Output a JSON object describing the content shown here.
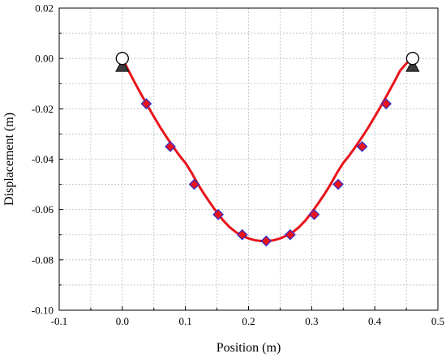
{
  "chart_data": {
    "type": "line",
    "xlabel": "Position (m)",
    "ylabel": "Displacement (m)",
    "xlim": [
      -0.1,
      0.5
    ],
    "ylim": [
      -0.1,
      0.02
    ],
    "x_ticks": [
      -0.1,
      0.0,
      0.1,
      0.2,
      0.3,
      0.4,
      0.5
    ],
    "y_ticks": [
      0.02,
      0.0,
      -0.02,
      -0.04,
      -0.06,
      -0.08,
      -0.1
    ],
    "x_tick_labels": [
      "-0.1",
      "0.0",
      "0.1",
      "0.2",
      "0.3",
      "0.4",
      "0.5"
    ],
    "y_tick_labels": [
      "0.02",
      "0.00",
      "-0.02",
      "-0.04",
      "-0.06",
      "-0.08",
      "-0.10"
    ],
    "grid": true,
    "series": [
      {
        "role": "curve",
        "color": "#e8141b",
        "x": [
          0.0,
          0.01,
          0.02,
          0.03,
          0.04,
          0.05,
          0.06,
          0.07,
          0.08,
          0.09,
          0.1,
          0.11,
          0.12,
          0.13,
          0.14,
          0.15,
          0.16,
          0.17,
          0.18,
          0.19,
          0.2,
          0.21,
          0.22,
          0.23,
          0.24,
          0.25,
          0.26,
          0.27,
          0.28,
          0.29,
          0.3,
          0.31,
          0.32,
          0.33,
          0.34,
          0.35,
          0.36,
          0.37,
          0.38,
          0.39,
          0.4,
          0.41,
          0.42,
          0.43,
          0.44,
          0.45,
          0.46
        ],
        "y": [
          0.0,
          -0.0049,
          -0.0097,
          -0.0143,
          -0.0188,
          -0.0231,
          -0.0273,
          -0.0312,
          -0.0349,
          -0.0384,
          -0.0415,
          -0.0455,
          -0.05,
          -0.054,
          -0.0577,
          -0.0612,
          -0.0644,
          -0.067,
          -0.069,
          -0.0704,
          -0.0715,
          -0.0722,
          -0.0725,
          -0.0725,
          -0.0722,
          -0.0715,
          -0.0704,
          -0.069,
          -0.067,
          -0.0644,
          -0.0612,
          -0.0577,
          -0.054,
          -0.05,
          -0.0455,
          -0.0415,
          -0.0384,
          -0.0349,
          -0.0312,
          -0.0273,
          -0.0231,
          -0.0188,
          -0.0143,
          -0.0097,
          -0.0049,
          -0.002,
          0.0
        ]
      },
      {
        "role": "points",
        "marker": "diamond",
        "color": "#e8141b",
        "edge_color": "#2b2bd0",
        "x": [
          0.038,
          0.076,
          0.114,
          0.152,
          0.19,
          0.228,
          0.266,
          0.304,
          0.342,
          0.38,
          0.418
        ],
        "y": [
          -0.018,
          -0.035,
          -0.05,
          -0.062,
          -0.07,
          -0.0725,
          -0.07,
          -0.062,
          -0.05,
          -0.035,
          -0.018
        ]
      }
    ],
    "supports": [
      {
        "x": 0.0,
        "y": 0.0
      },
      {
        "x": 0.46,
        "y": 0.0
      }
    ]
  }
}
